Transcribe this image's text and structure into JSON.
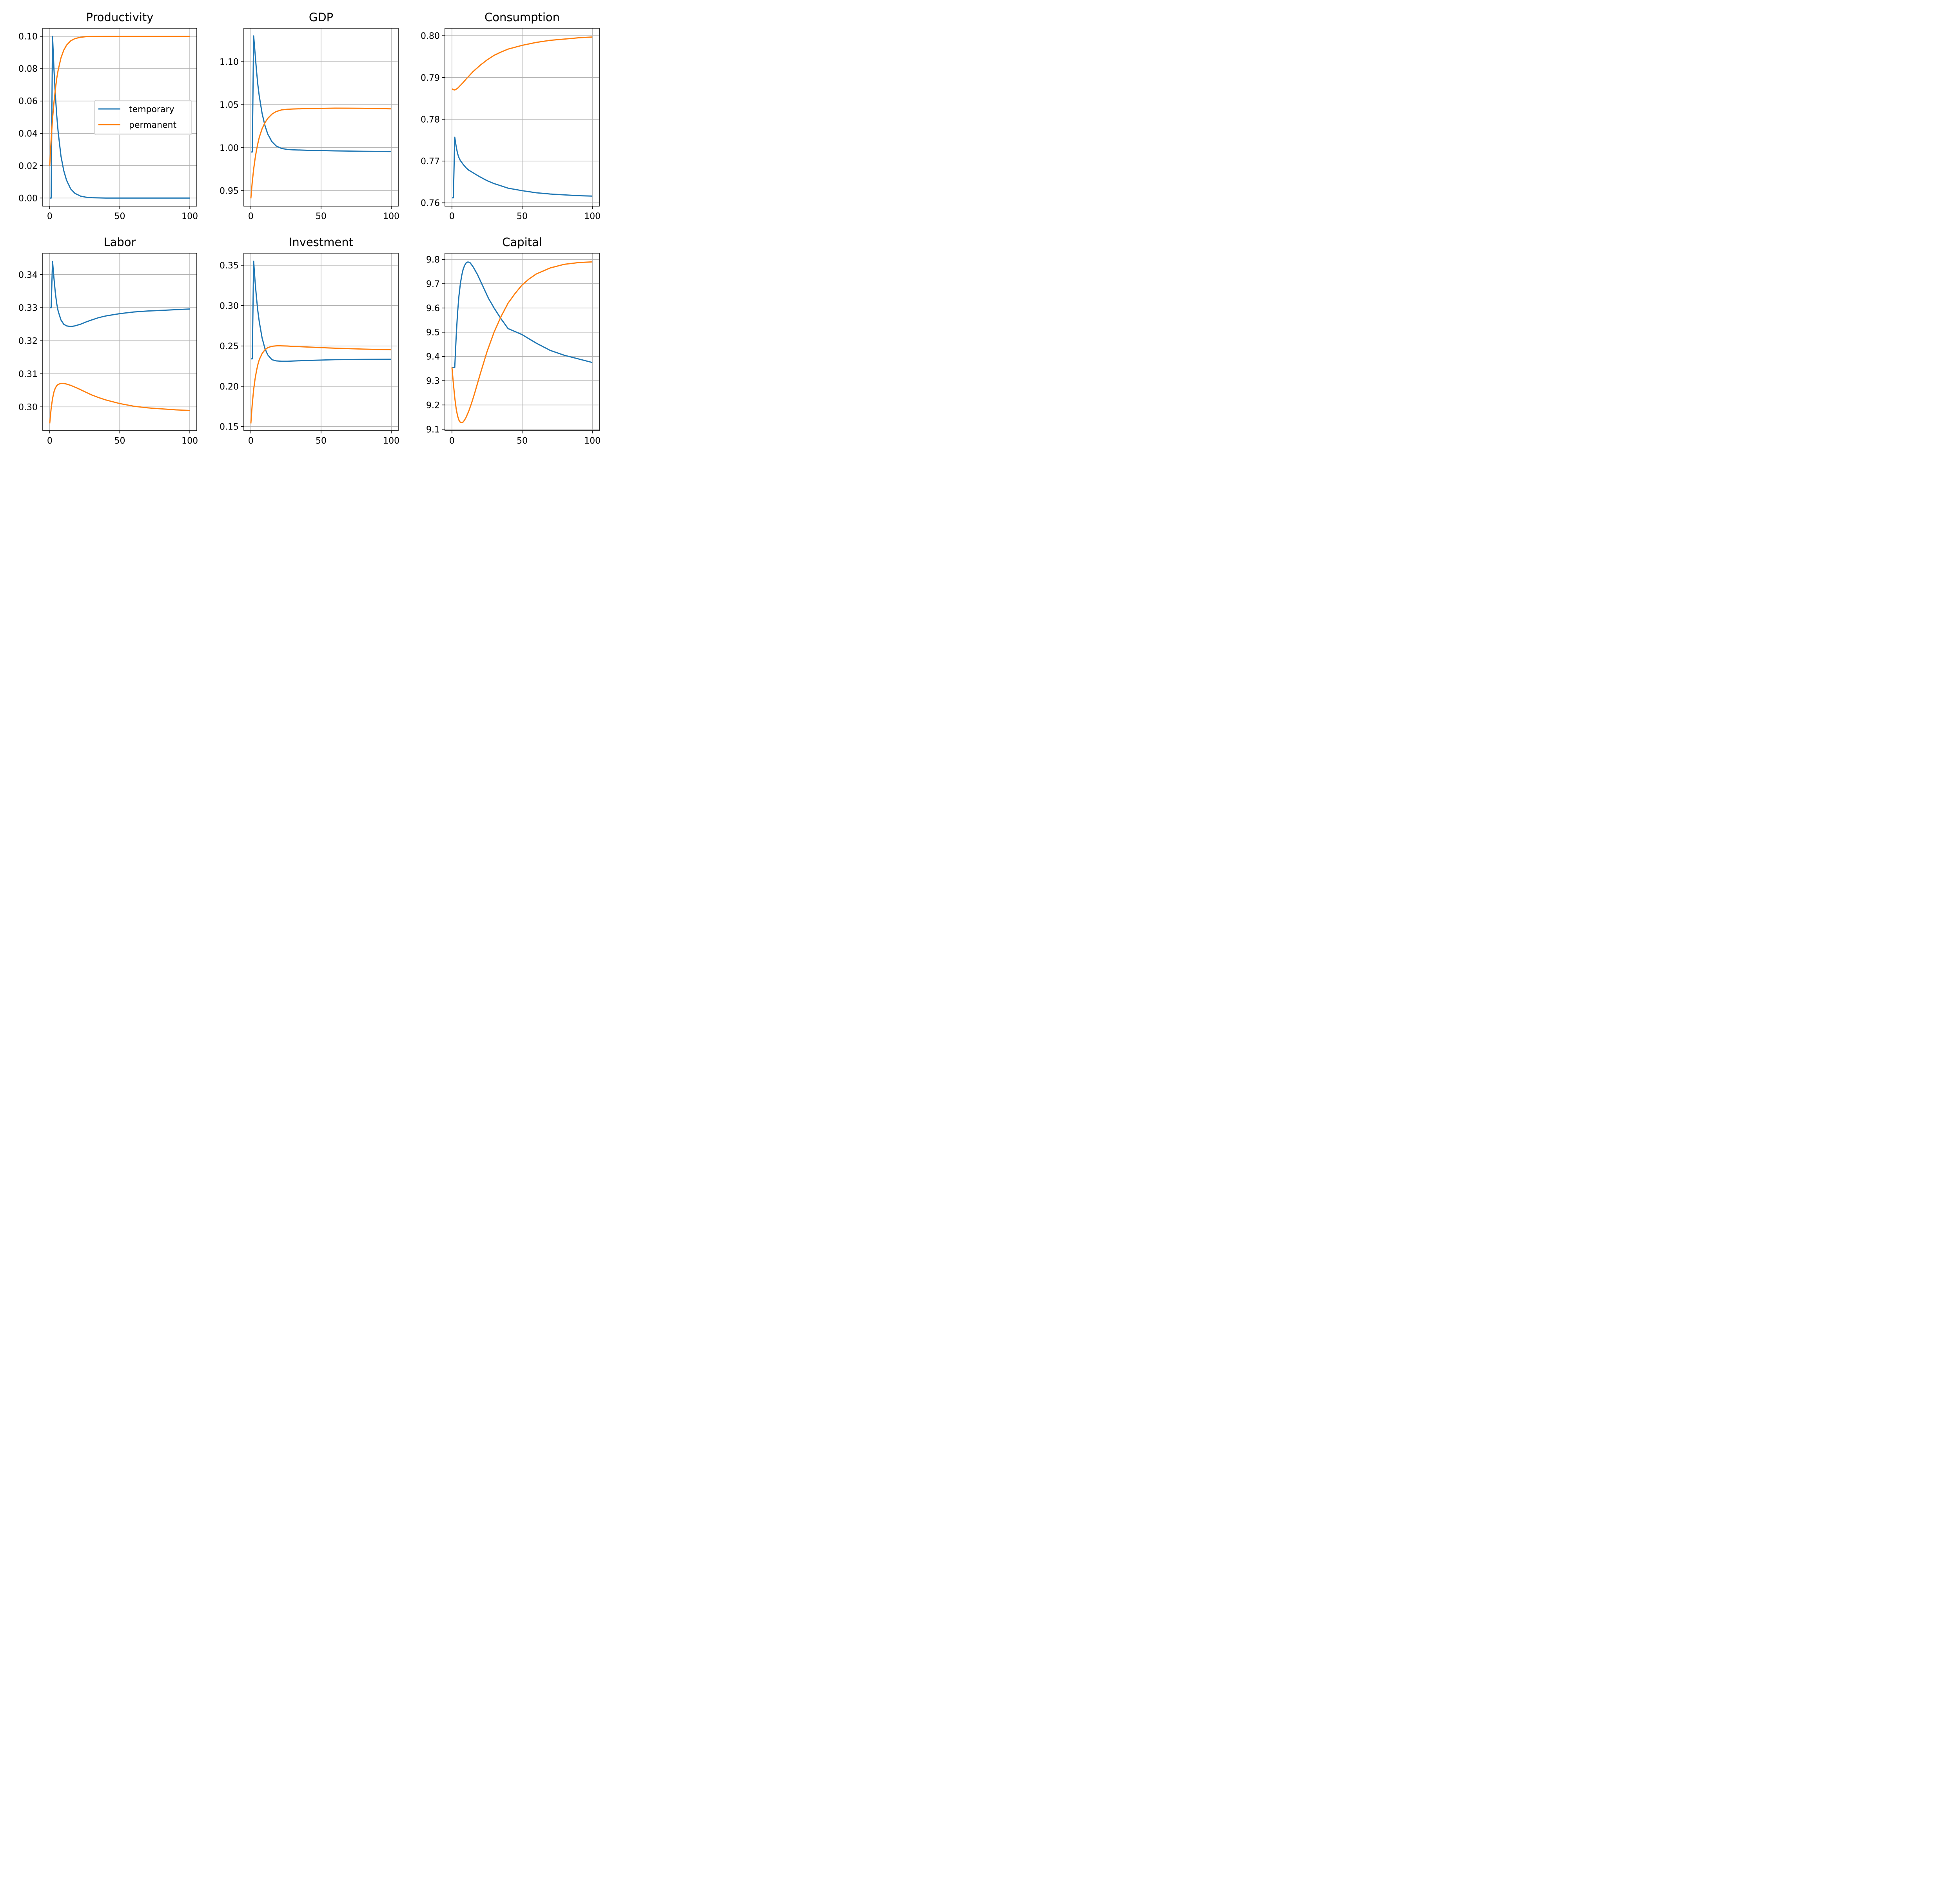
{
  "colors": {
    "temporary": "#1f77b4",
    "permanent": "#ff7f0e",
    "grid": "#b0b0b0"
  },
  "legend": {
    "placement": "center-right",
    "panel": 0,
    "entries": [
      "temporary",
      "permanent"
    ]
  },
  "chart_data": [
    {
      "type": "line",
      "title": "Productivity",
      "xlabel": "",
      "ylabel": "",
      "xlim": [
        -5,
        105
      ],
      "ylim": [
        -0.005,
        0.105
      ],
      "xticks": [
        0,
        50,
        100
      ],
      "xtick_labels": [
        "0",
        "50",
        "100"
      ],
      "yticks": [
        0,
        0.02,
        0.04,
        0.06,
        0.08,
        0.1
      ],
      "ytick_labels": [
        "0.00",
        "0.02",
        "0.04",
        "0.06",
        "0.08",
        "0.10"
      ],
      "grid": true,
      "series": [
        {
          "name": "temporary",
          "x": [
            0,
            1,
            2,
            3,
            4,
            5,
            6,
            8,
            10,
            12,
            15,
            18,
            22,
            26,
            30,
            40,
            60,
            80,
            100
          ],
          "y": [
            0,
            0,
            0.1,
            0.08,
            0.064,
            0.051,
            0.041,
            0.026,
            0.017,
            0.011,
            0.0056,
            0.0029,
            0.0012,
            0.0005,
            0.0002,
            0,
            0,
            0,
            0
          ]
        },
        {
          "name": "permanent",
          "x": [
            0,
            1,
            2,
            3,
            4,
            5,
            6,
            8,
            10,
            12,
            15,
            18,
            22,
            26,
            30,
            40,
            60,
            80,
            100
          ],
          "y": [
            0.02,
            0.036,
            0.049,
            0.059,
            0.067,
            0.074,
            0.079,
            0.0866,
            0.0914,
            0.0945,
            0.0972,
            0.0986,
            0.0994,
            0.0998,
            0.0999,
            0.1,
            0.1,
            0.1,
            0.1
          ]
        }
      ]
    },
    {
      "type": "line",
      "title": "GDP",
      "xlabel": "",
      "ylabel": "",
      "xlim": [
        -5,
        105
      ],
      "ylim": [
        0.932,
        1.139
      ],
      "xticks": [
        0,
        50,
        100
      ],
      "xtick_labels": [
        "0",
        "50",
        "100"
      ],
      "yticks": [
        0.95,
        1.0,
        1.05,
        1.1
      ],
      "ytick_labels": [
        "0.95",
        "1.00",
        "1.05",
        "1.10"
      ],
      "grid": true,
      "series": [
        {
          "name": "temporary",
          "x": [
            0,
            1,
            2,
            3,
            4,
            5,
            6,
            8,
            10,
            12,
            15,
            18,
            22,
            26,
            30,
            40,
            60,
            80,
            100
          ],
          "y": [
            0.995,
            0.995,
            1.13,
            1.11,
            1.09,
            1.073,
            1.06,
            1.04,
            1.026,
            1.016,
            1.007,
            1.002,
            0.999,
            0.998,
            0.9975,
            0.997,
            0.9963,
            0.9958,
            0.9955
          ]
        },
        {
          "name": "permanent",
          "x": [
            0,
            1,
            2,
            3,
            4,
            5,
            6,
            8,
            10,
            12,
            15,
            18,
            22,
            26,
            30,
            40,
            60,
            80,
            100
          ],
          "y": [
            0.941,
            0.96,
            0.975,
            0.987,
            0.997,
            1.005,
            1.012,
            1.022,
            1.029,
            1.034,
            1.039,
            1.042,
            1.044,
            1.0447,
            1.045,
            1.0455,
            1.046,
            1.0458,
            1.0452
          ]
        }
      ]
    },
    {
      "type": "line",
      "title": "Consumption",
      "xlabel": "",
      "ylabel": "",
      "xlim": [
        -5,
        105
      ],
      "ylim": [
        0.7592,
        0.8018
      ],
      "xticks": [
        0,
        50,
        100
      ],
      "xtick_labels": [
        "0",
        "50",
        "100"
      ],
      "yticks": [
        0.76,
        0.77,
        0.78,
        0.79,
        0.8
      ],
      "ytick_labels": [
        "0.76",
        "0.77",
        "0.78",
        "0.79",
        "0.80"
      ],
      "grid": true,
      "series": [
        {
          "name": "temporary",
          "x": [
            0,
            1,
            2,
            3,
            4,
            5,
            6,
            8,
            10,
            12,
            15,
            20,
            25,
            30,
            40,
            50,
            60,
            70,
            80,
            90,
            100
          ],
          "y": [
            0.7612,
            0.7612,
            0.7757,
            0.7735,
            0.7718,
            0.7708,
            0.7701,
            0.7692,
            0.7684,
            0.7678,
            0.7672,
            0.7662,
            0.7653,
            0.7646,
            0.7635,
            0.7629,
            0.7624,
            0.7621,
            0.7619,
            0.7617,
            0.7616
          ]
        },
        {
          "name": "permanent",
          "x": [
            0,
            1,
            2,
            4,
            6,
            8,
            10,
            12,
            15,
            20,
            25,
            30,
            35,
            40,
            50,
            60,
            70,
            80,
            90,
            100
          ],
          "y": [
            0.7873,
            0.7871,
            0.787,
            0.7874,
            0.7881,
            0.7888,
            0.7896,
            0.7903,
            0.7914,
            0.7929,
            0.7942,
            0.7953,
            0.7961,
            0.7968,
            0.7977,
            0.7984,
            0.7989,
            0.7992,
            0.7995,
            0.7997
          ]
        }
      ]
    },
    {
      "type": "line",
      "title": "Labor",
      "xlabel": "",
      "ylabel": "",
      "xlim": [
        -5,
        105
      ],
      "ylim": [
        0.2928,
        0.3465
      ],
      "xticks": [
        0,
        50,
        100
      ],
      "xtick_labels": [
        "0",
        "50",
        "100"
      ],
      "yticks": [
        0.3,
        0.31,
        0.32,
        0.33,
        0.34
      ],
      "ytick_labels": [
        "0.30",
        "0.31",
        "0.32",
        "0.33",
        "0.34"
      ],
      "grid": true,
      "series": [
        {
          "name": "temporary",
          "x": [
            0,
            1,
            2,
            3,
            4,
            5,
            6,
            8,
            10,
            12,
            15,
            18,
            22,
            26,
            30,
            35,
            40,
            50,
            60,
            70,
            80,
            90,
            100
          ],
          "y": [
            0.33,
            0.33,
            0.344,
            0.339,
            0.3345,
            0.3312,
            0.329,
            0.3263,
            0.325,
            0.3245,
            0.3243,
            0.3245,
            0.325,
            0.3257,
            0.3263,
            0.327,
            0.3275,
            0.3282,
            0.3287,
            0.329,
            0.3292,
            0.3294,
            0.3296
          ]
        },
        {
          "name": "permanent",
          "x": [
            0,
            1,
            2,
            3,
            4,
            5,
            6,
            8,
            10,
            12,
            15,
            20,
            25,
            30,
            35,
            40,
            50,
            60,
            70,
            80,
            90,
            100
          ],
          "y": [
            0.295,
            0.2995,
            0.3025,
            0.3045,
            0.3057,
            0.3064,
            0.3068,
            0.3071,
            0.3071,
            0.3069,
            0.3065,
            0.3056,
            0.3046,
            0.3036,
            0.3028,
            0.3021,
            0.301,
            0.3002,
            0.2997,
            0.2994,
            0.2991,
            0.2989
          ]
        }
      ]
    },
    {
      "type": "line",
      "title": "Investment",
      "xlabel": "",
      "ylabel": "",
      "xlim": [
        -5,
        105
      ],
      "ylim": [
        0.145,
        0.365
      ],
      "xticks": [
        0,
        50,
        100
      ],
      "xtick_labels": [
        "0",
        "50",
        "100"
      ],
      "yticks": [
        0.15,
        0.2,
        0.25,
        0.3,
        0.35
      ],
      "ytick_labels": [
        "0.15",
        "0.20",
        "0.25",
        "0.30",
        "0.35"
      ],
      "grid": true,
      "series": [
        {
          "name": "temporary",
          "x": [
            0,
            1,
            2,
            3,
            4,
            5,
            6,
            8,
            10,
            12,
            15,
            18,
            22,
            26,
            30,
            40,
            50,
            60,
            80,
            100
          ],
          "y": [
            0.234,
            0.234,
            0.355,
            0.33,
            0.31,
            0.293,
            0.28,
            0.26,
            0.247,
            0.239,
            0.233,
            0.2315,
            0.231,
            0.231,
            0.2313,
            0.232,
            0.2325,
            0.233,
            0.2333,
            0.2335
          ]
        },
        {
          "name": "permanent",
          "x": [
            0,
            1,
            2,
            3,
            4,
            5,
            6,
            8,
            10,
            12,
            15,
            18,
            20,
            22,
            26,
            30,
            40,
            50,
            60,
            80,
            100
          ],
          "y": [
            0.154,
            0.178,
            0.196,
            0.209,
            0.219,
            0.227,
            0.233,
            0.2405,
            0.2452,
            0.2478,
            0.2496,
            0.2501,
            0.2502,
            0.2501,
            0.2499,
            0.2495,
            0.2487,
            0.2479,
            0.2472,
            0.2461,
            0.2452
          ]
        }
      ]
    },
    {
      "type": "line",
      "title": "Capital",
      "xlabel": "",
      "ylabel": "",
      "xlim": [
        -5,
        105
      ],
      "ylim": [
        9.094,
        9.826
      ],
      "xticks": [
        0,
        50,
        100
      ],
      "xtick_labels": [
        "0",
        "50",
        "100"
      ],
      "yticks": [
        9.1,
        9.2,
        9.3,
        9.4,
        9.5,
        9.6,
        9.7,
        9.8
      ],
      "ytick_labels": [
        "9.1",
        "9.2",
        "9.3",
        "9.4",
        "9.5",
        "9.6",
        "9.7",
        "9.8"
      ],
      "grid": true,
      "series": [
        {
          "name": "temporary",
          "x": [
            0,
            1,
            2,
            3,
            4,
            5,
            6,
            7,
            8,
            9,
            10,
            11,
            12,
            13,
            15,
            18,
            22,
            26,
            30,
            35,
            40,
            50,
            60,
            70,
            80,
            90,
            100
          ],
          "y": [
            9.355,
            9.355,
            9.355,
            9.48,
            9.58,
            9.65,
            9.7,
            9.735,
            9.76,
            9.775,
            9.785,
            9.789,
            9.789,
            9.786,
            9.77,
            9.74,
            9.69,
            9.64,
            9.6,
            9.555,
            9.515,
            9.49,
            9.455,
            9.425,
            9.405,
            9.39,
            9.375
          ]
        },
        {
          "name": "permanent",
          "x": [
            0,
            1,
            2,
            3,
            4,
            5,
            6,
            7,
            8,
            9,
            10,
            12,
            14,
            16,
            18,
            20,
            25,
            30,
            35,
            40,
            45,
            50,
            55,
            60,
            70,
            80,
            90,
            100
          ],
          "y": [
            9.355,
            9.29,
            9.23,
            9.185,
            9.155,
            9.137,
            9.128,
            9.127,
            9.13,
            9.138,
            9.148,
            9.175,
            9.208,
            9.245,
            9.285,
            9.325,
            9.42,
            9.5,
            9.565,
            9.62,
            9.66,
            9.695,
            9.72,
            9.74,
            9.765,
            9.78,
            9.787,
            9.79
          ]
        }
      ]
    }
  ]
}
